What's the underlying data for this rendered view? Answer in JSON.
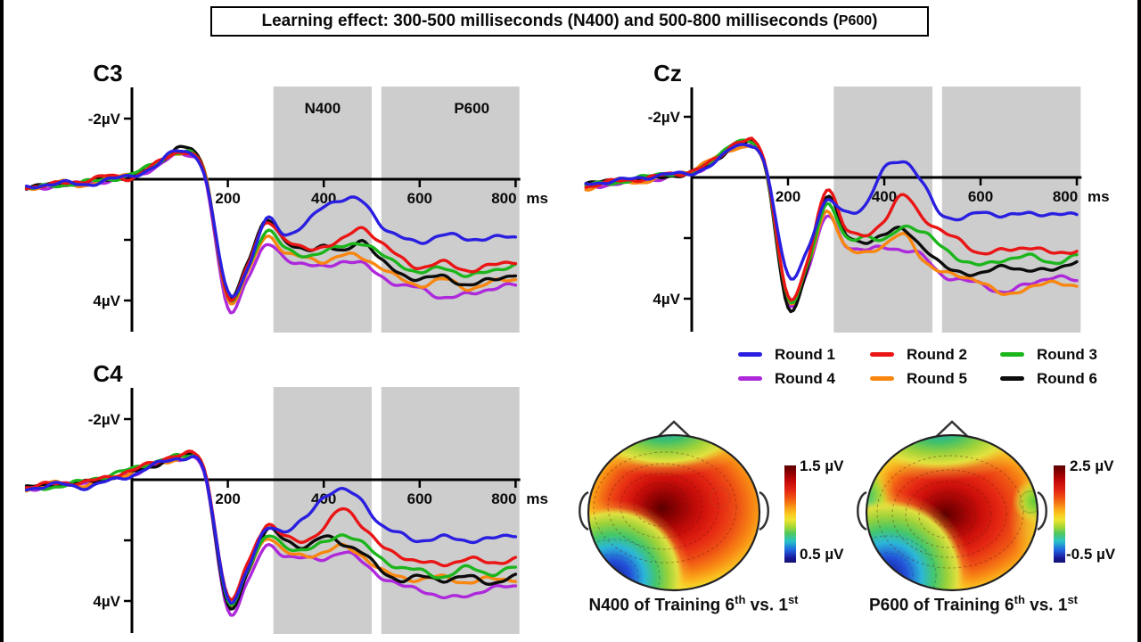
{
  "page": {
    "title_box": {
      "text_main": "Learning effect: 300-500 milliseconds (N400) and 500-800 milliseconds (",
      "text_small": "P600",
      "text_end": ")"
    }
  },
  "chart_data": [
    {
      "id": "C3",
      "type": "line",
      "title": "C3",
      "x_unit": "ms",
      "x_ticks": [
        200,
        400,
        600,
        800
      ],
      "y_tick_labels": {
        "neg": "-2µV",
        "pos": "4µV"
      },
      "y_axis_uV_up_is_negative": true,
      "xlim_ms": [
        -220,
        808
      ],
      "ylim_uV": [
        -3,
        5
      ],
      "band_color": "#cdcdcd",
      "regions": [
        {
          "label": "N400",
          "from_ms": 295,
          "to_ms": 500
        },
        {
          "label": "P600",
          "from_ms": 520,
          "to_ms": 808
        }
      ],
      "x_ms": [
        -220,
        -150,
        -100,
        -50,
        0,
        50,
        100,
        150,
        200,
        240,
        280,
        320,
        360,
        400,
        440,
        480,
        520,
        560,
        600,
        650,
        700,
        750,
        800
      ],
      "series": [
        {
          "name": "Round 1",
          "color": "#2a1fe0",
          "uV": [
            0.3,
            0.1,
            0.2,
            0.0,
            -0.1,
            -0.45,
            -0.95,
            -0.2,
            3.7,
            3.0,
            1.35,
            1.8,
            1.5,
            0.9,
            0.65,
            0.75,
            1.5,
            1.9,
            2.1,
            1.8,
            2.0,
            1.9,
            1.95
          ]
        },
        {
          "name": "Round 2",
          "color": "#ea1515",
          "uV": [
            0.25,
            0.15,
            0.05,
            -0.1,
            -0.05,
            -0.5,
            -0.9,
            -0.25,
            3.85,
            2.9,
            1.4,
            2.0,
            2.3,
            2.2,
            2.0,
            1.6,
            2.1,
            2.6,
            2.9,
            2.75,
            3.0,
            2.85,
            2.7
          ]
        },
        {
          "name": "Round 3",
          "color": "#1cb51c",
          "uV": [
            0.3,
            0.2,
            0.1,
            0.0,
            -0.15,
            -0.55,
            -0.85,
            -0.3,
            3.9,
            3.0,
            1.7,
            2.3,
            2.5,
            2.4,
            2.2,
            2.1,
            2.5,
            2.8,
            3.1,
            2.9,
            3.2,
            3.0,
            2.85
          ]
        },
        {
          "name": "Round 4",
          "color": "#ad29db",
          "uV": [
            0.35,
            0.2,
            0.15,
            0.05,
            -0.1,
            -0.4,
            -0.8,
            -0.2,
            4.25,
            3.3,
            2.2,
            2.6,
            2.8,
            2.9,
            2.7,
            2.8,
            3.2,
            3.5,
            3.6,
            3.9,
            3.8,
            3.6,
            3.5
          ]
        },
        {
          "name": "Round 5",
          "color": "#f8860f",
          "uV": [
            0.3,
            0.1,
            0.2,
            -0.05,
            -0.2,
            -0.5,
            -0.9,
            -0.35,
            3.95,
            3.1,
            1.9,
            2.4,
            2.6,
            2.7,
            2.5,
            2.6,
            2.9,
            3.3,
            3.5,
            3.3,
            3.6,
            3.4,
            3.3
          ]
        },
        {
          "name": "Round 6",
          "color": "#0c0c0c",
          "uV": [
            0.25,
            0.15,
            0.1,
            0.0,
            -0.1,
            -0.45,
            -1.05,
            -0.3,
            3.8,
            2.8,
            1.3,
            2.1,
            2.3,
            2.2,
            2.4,
            2.0,
            2.7,
            3.1,
            3.3,
            3.2,
            3.5,
            3.3,
            3.15
          ]
        }
      ]
    },
    {
      "id": "Cz",
      "type": "line",
      "title": "Cz",
      "x_unit": "ms",
      "x_ticks": [
        200,
        400,
        600,
        800
      ],
      "y_tick_labels": {
        "neg": "-2µV",
        "pos": "4µV"
      },
      "y_axis_uV_up_is_negative": true,
      "xlim_ms": [
        -220,
        808
      ],
      "ylim_uV": [
        -3,
        5
      ],
      "band_color": "#cdcdcd",
      "regions": [
        {
          "label": "",
          "from_ms": 295,
          "to_ms": 500
        },
        {
          "label": "",
          "from_ms": 520,
          "to_ms": 808
        }
      ],
      "x_ms": [
        -220,
        -150,
        -100,
        -50,
        0,
        50,
        100,
        150,
        200,
        240,
        280,
        320,
        360,
        400,
        440,
        480,
        520,
        560,
        600,
        650,
        700,
        750,
        800
      ],
      "series": [
        {
          "name": "Round 1",
          "color": "#2a1fe0",
          "uV": [
            0.2,
            0.1,
            0.0,
            -0.1,
            -0.15,
            -0.5,
            -1.1,
            -0.5,
            3.2,
            2.4,
            0.8,
            1.1,
            1.0,
            -0.35,
            -0.5,
            0.2,
            1.2,
            1.4,
            1.1,
            1.3,
            1.15,
            1.25,
            1.2
          ]
        },
        {
          "name": "Round 2",
          "color": "#ea1515",
          "uV": [
            0.3,
            0.1,
            0.05,
            -0.1,
            -0.2,
            -0.6,
            -1.2,
            -0.6,
            3.9,
            2.8,
            0.35,
            1.7,
            1.9,
            1.4,
            0.6,
            1.3,
            1.8,
            2.1,
            2.5,
            2.4,
            2.3,
            2.5,
            2.4
          ]
        },
        {
          "name": "Round 3",
          "color": "#1cb51c",
          "uV": [
            0.25,
            0.15,
            0.0,
            -0.15,
            -0.1,
            -0.7,
            -1.15,
            -0.55,
            4.0,
            2.9,
            0.9,
            2.0,
            1.9,
            2.1,
            1.6,
            1.8,
            2.3,
            2.7,
            2.9,
            2.7,
            2.6,
            2.8,
            2.6
          ]
        },
        {
          "name": "Round 4",
          "color": "#ad29db",
          "uV": [
            0.3,
            0.2,
            0.1,
            0.0,
            -0.15,
            -0.55,
            -1.05,
            -0.5,
            4.1,
            3.1,
            1.3,
            2.2,
            2.4,
            2.3,
            2.4,
            2.6,
            3.2,
            3.4,
            3.5,
            3.8,
            3.5,
            3.3,
            3.4
          ]
        },
        {
          "name": "Round 5",
          "color": "#f8860f",
          "uV": [
            0.35,
            0.1,
            0.15,
            -0.1,
            -0.25,
            -0.65,
            -1.0,
            -0.45,
            4.0,
            3.0,
            1.1,
            2.3,
            2.5,
            2.2,
            1.9,
            2.7,
            3.1,
            3.3,
            3.4,
            3.9,
            3.6,
            3.5,
            3.55
          ]
        },
        {
          "name": "Round 6",
          "color": "#0c0c0c",
          "uV": [
            0.2,
            0.1,
            0.05,
            -0.05,
            -0.15,
            -0.6,
            -1.1,
            -0.55,
            4.3,
            3.0,
            0.6,
            1.9,
            2.1,
            1.9,
            1.7,
            2.3,
            2.9,
            3.1,
            3.2,
            2.9,
            3.1,
            3.0,
            2.8
          ]
        }
      ]
    },
    {
      "id": "C4",
      "type": "line",
      "title": "C4",
      "x_unit": "ms",
      "x_ticks": [
        200,
        400,
        600,
        800
      ],
      "y_tick_labels": {
        "neg": "-2µV",
        "pos": "4µV"
      },
      "y_axis_uV_up_is_negative": true,
      "xlim_ms": [
        -220,
        808
      ],
      "ylim_uV": [
        -3,
        5
      ],
      "band_color": "#cdcdcd",
      "regions": [
        {
          "label": "",
          "from_ms": 295,
          "to_ms": 500
        },
        {
          "label": "",
          "from_ms": 520,
          "to_ms": 808
        }
      ],
      "x_ms": [
        -220,
        -150,
        -100,
        -50,
        0,
        50,
        100,
        150,
        200,
        240,
        280,
        320,
        360,
        400,
        440,
        480,
        520,
        560,
        600,
        650,
        700,
        750,
        800
      ],
      "series": [
        {
          "name": "Round 1",
          "color": "#2a1fe0",
          "uV": [
            0.3,
            0.15,
            0.25,
            0.05,
            -0.15,
            -0.5,
            -0.7,
            -0.3,
            3.9,
            3.0,
            1.6,
            1.7,
            1.3,
            0.55,
            0.35,
            0.7,
            1.5,
            1.8,
            2.0,
            1.9,
            2.0,
            1.95,
            1.8
          ]
        },
        {
          "name": "Round 2",
          "color": "#ea1515",
          "uV": [
            0.25,
            0.1,
            0.1,
            -0.1,
            -0.3,
            -0.6,
            -0.8,
            -0.4,
            3.85,
            2.8,
            1.5,
            1.9,
            2.0,
            1.6,
            0.95,
            1.5,
            2.2,
            2.5,
            2.7,
            2.8,
            2.6,
            2.75,
            2.6
          ]
        },
        {
          "name": "Round 3",
          "color": "#1cb51c",
          "uV": [
            0.35,
            0.2,
            0.05,
            -0.15,
            -0.35,
            -0.6,
            -0.75,
            -0.35,
            4.0,
            3.0,
            1.9,
            2.2,
            2.3,
            2.1,
            1.8,
            2.1,
            2.6,
            2.9,
            3.0,
            3.2,
            2.9,
            3.1,
            2.9
          ]
        },
        {
          "name": "Round 4",
          "color": "#ad29db",
          "uV": [
            0.3,
            0.2,
            0.1,
            0.0,
            -0.2,
            -0.45,
            -0.7,
            -0.25,
            4.3,
            3.4,
            2.2,
            2.5,
            2.6,
            2.6,
            2.4,
            2.7,
            3.2,
            3.5,
            3.6,
            3.9,
            3.8,
            3.6,
            3.5
          ]
        },
        {
          "name": "Round 5",
          "color": "#f8860f",
          "uV": [
            0.3,
            0.1,
            0.2,
            -0.05,
            -0.25,
            -0.55,
            -0.65,
            -0.4,
            4.0,
            3.1,
            1.9,
            2.4,
            2.5,
            2.4,
            2.2,
            2.5,
            3.0,
            3.2,
            3.3,
            3.2,
            3.4,
            3.25,
            3.3
          ]
        },
        {
          "name": "Round 6",
          "color": "#0c0c0c",
          "uV": [
            0.25,
            0.15,
            0.1,
            -0.05,
            -0.25,
            -0.5,
            -0.75,
            -0.35,
            4.15,
            3.1,
            1.7,
            2.0,
            2.2,
            1.9,
            2.1,
            2.4,
            3.0,
            3.3,
            3.2,
            3.3,
            3.2,
            3.4,
            3.2
          ]
        }
      ]
    },
    {
      "id": "topo_n400",
      "type": "heatmap",
      "caption": {
        "pre": "N400 of Training 6",
        "sup_a": "th",
        "mid": " vs. 1",
        "sup_b": "st"
      },
      "colorbar": {
        "max": "1.5 µV",
        "min": "0.5 µV"
      },
      "hotspot": "centro-left, dark red maximum",
      "cold_zones": "bottom-left edge blue, top edge cyan-green"
    },
    {
      "id": "topo_p600",
      "type": "heatmap",
      "caption": {
        "pre": "P600 of Training 6",
        "sup_a": "th",
        "mid": " vs. 1",
        "sup_b": "st"
      },
      "colorbar": {
        "max": "2.5 µV",
        "min": "-0.5 µV"
      },
      "hotspot": "central, dark red maximum",
      "cold_zones": "bottom-left blue, left and top edges cyan-green, right edge yellow"
    }
  ]
}
